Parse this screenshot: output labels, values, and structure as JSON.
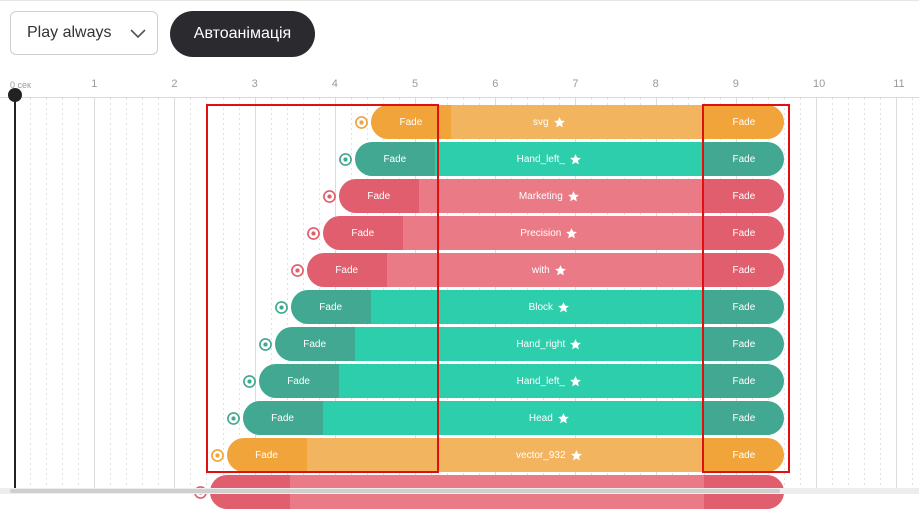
{
  "toolbar": {
    "play_mode": "Play always",
    "auto_animation_label": "Автоанімація"
  },
  "ruler": {
    "ticks": [
      {
        "second": 0,
        "label": "0 сек",
        "small": true
      },
      {
        "second": 1,
        "label": "1"
      },
      {
        "second": 2,
        "label": "2"
      },
      {
        "second": 3,
        "label": "3"
      },
      {
        "second": 4,
        "label": "4"
      },
      {
        "second": 5,
        "label": "5"
      },
      {
        "second": 6,
        "label": "6"
      },
      {
        "second": 7,
        "label": "7"
      },
      {
        "second": 8,
        "label": "8"
      },
      {
        "second": 9,
        "label": "9"
      },
      {
        "second": 10,
        "label": "10"
      },
      {
        "second": 11,
        "label": "11"
      }
    ]
  },
  "playhead_seconds": 0,
  "colors": {
    "orange": {
      "light": "#f3b45f",
      "dark": "#f0a43a"
    },
    "teal": {
      "light": "#2dceac",
      "dark": "#43a892"
    },
    "pink": {
      "light": "#ea7a86",
      "dark": "#e05e6e"
    },
    "highlight": "#e01010"
  },
  "tracks": [
    {
      "name": "svg",
      "color": "orange",
      "start": 4.45,
      "end": 9.6,
      "fade_in": "Fade",
      "fade_out": "Fade"
    },
    {
      "name": "Hand_left_",
      "color": "teal",
      "start": 4.25,
      "end": 9.6,
      "fade_in": "Fade",
      "fade_out": "Fade"
    },
    {
      "name": "Marketing",
      "color": "pink",
      "start": 4.05,
      "end": 9.6,
      "fade_in": "Fade",
      "fade_out": "Fade"
    },
    {
      "name": "Precision",
      "color": "pink",
      "start": 3.85,
      "end": 9.6,
      "fade_in": "Fade",
      "fade_out": "Fade"
    },
    {
      "name": "with",
      "color": "pink",
      "start": 3.65,
      "end": 9.6,
      "fade_in": "Fade",
      "fade_out": "Fade"
    },
    {
      "name": "Block",
      "color": "teal",
      "start": 3.45,
      "end": 9.6,
      "fade_in": "Fade",
      "fade_out": "Fade"
    },
    {
      "name": "Hand_right",
      "color": "teal",
      "start": 3.25,
      "end": 9.6,
      "fade_in": "Fade",
      "fade_out": "Fade"
    },
    {
      "name": "Hand_left_",
      "color": "teal",
      "start": 3.05,
      "end": 9.6,
      "fade_in": "Fade",
      "fade_out": "Fade"
    },
    {
      "name": "Head",
      "color": "teal",
      "start": 2.85,
      "end": 9.6,
      "fade_in": "Fade",
      "fade_out": "Fade"
    },
    {
      "name": "vector_932",
      "color": "orange",
      "start": 2.65,
      "end": 9.6,
      "fade_in": "Fade",
      "fade_out": "Fade"
    },
    {
      "name": "",
      "color": "pink",
      "start": 2.45,
      "end": 9.6,
      "fade_in": "",
      "fade_out": ""
    }
  ],
  "icons": {
    "dropdown": "chevron-down-icon",
    "visibility": "eye-icon",
    "favorite": "star-icon",
    "playhead": "playhead-knob"
  }
}
